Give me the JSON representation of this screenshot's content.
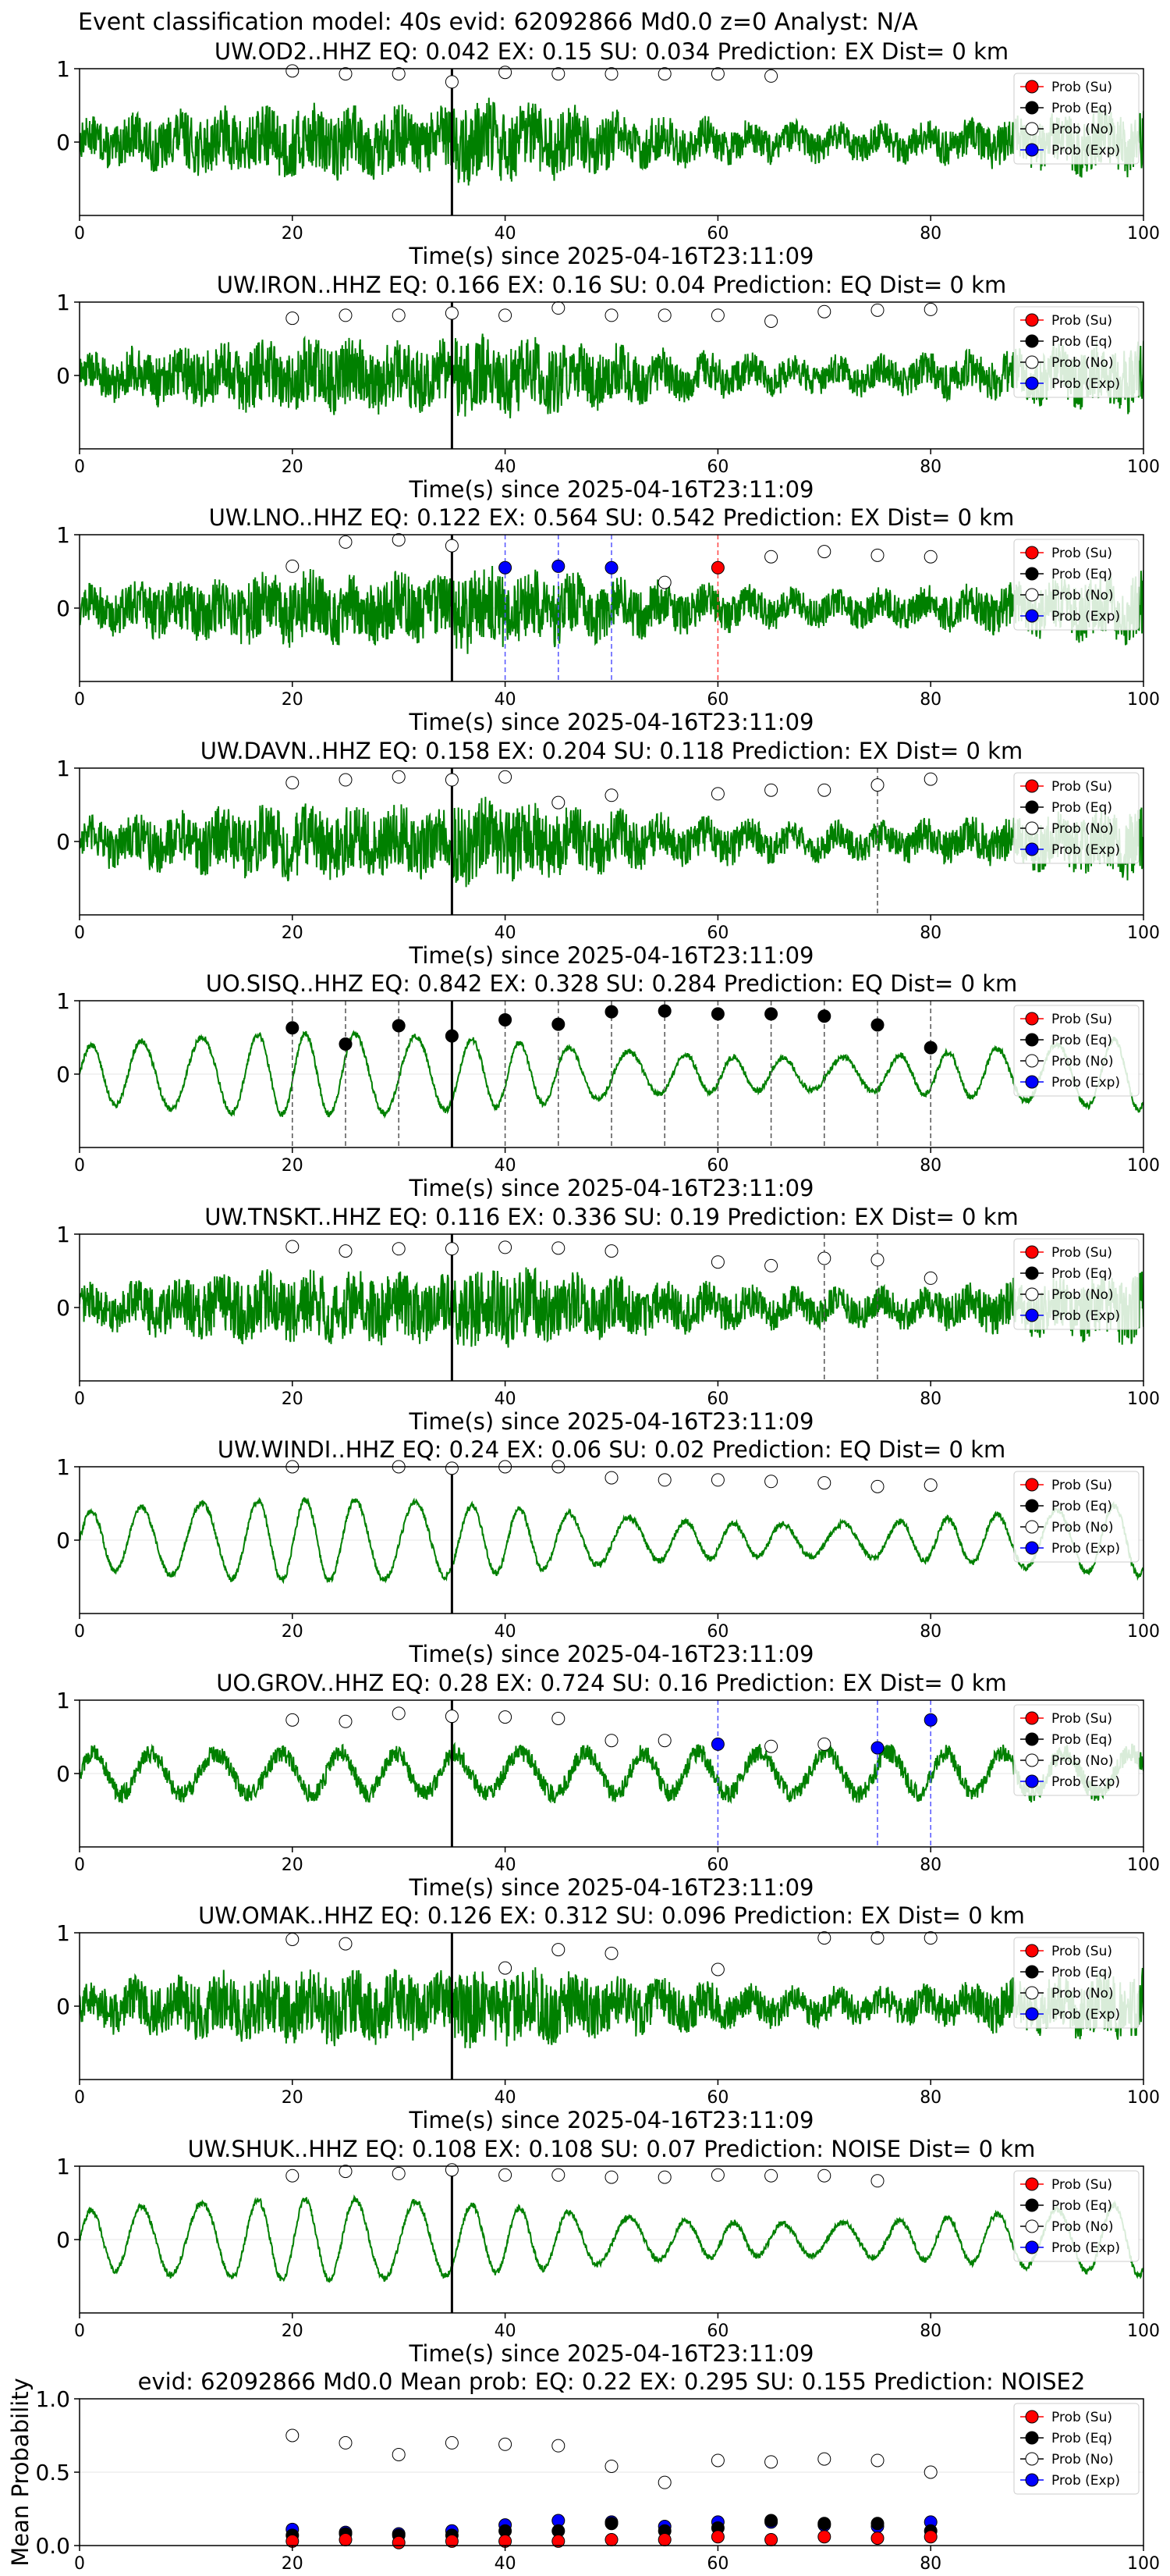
{
  "figure_title": "Event classification model: 40s evid: 62092866 Md0.0 z=0 Analyst: N/A",
  "legend_labels": [
    "Prob (Su)",
    "Prob (Eq)",
    "Prob (No)",
    "Prob (Exp)"
  ],
  "colors": {
    "trace": "#008000",
    "su": "#ff0000",
    "eq": "#000000",
    "no": "#ffffff",
    "exp": "#0000ff",
    "event_line": "#000000"
  },
  "chart_data": [
    {
      "type": "line",
      "title": "UW.OD2..HHZ   EQ: 0.042  EX: 0.15  SU: 0.034   Prediction: EX    Dist= 0 km",
      "xlabel": "Time(s) since 2025-04-16T23:11:09",
      "ylabel": "",
      "xlim": [
        0,
        100
      ],
      "ylim": [
        -1,
        1
      ],
      "xticks": [
        0,
        20,
        40,
        60,
        80,
        100
      ],
      "yticks": [
        0,
        1
      ],
      "event_time": 35,
      "trace_style": "noisy",
      "legend_position": "top-right",
      "grid": true,
      "points": {
        "su": [],
        "eq": [],
        "exp": [],
        "no": [
          [
            20,
            0.97
          ],
          [
            25,
            0.93
          ],
          [
            30,
            0.93
          ],
          [
            35,
            0.82
          ],
          [
            40,
            0.95
          ],
          [
            45,
            0.93
          ],
          [
            50,
            0.93
          ],
          [
            55,
            0.93
          ],
          [
            60,
            0.93
          ],
          [
            65,
            0.9
          ]
        ]
      },
      "vlines": []
    },
    {
      "type": "line",
      "title": "UW.IRON..HHZ   EQ: 0.166  EX: 0.16  SU: 0.04   Prediction: EQ    Dist= 0 km",
      "xlabel": "Time(s) since 2025-04-16T23:11:09",
      "ylabel": "",
      "xlim": [
        0,
        100
      ],
      "ylim": [
        -1,
        1
      ],
      "xticks": [
        0,
        20,
        40,
        60,
        80,
        100
      ],
      "yticks": [
        0,
        1
      ],
      "event_time": 35,
      "trace_style": "noisy",
      "legend_position": "top-right",
      "grid": true,
      "points": {
        "su": [],
        "eq": [],
        "exp": [],
        "no": [
          [
            20,
            0.78
          ],
          [
            25,
            0.82
          ],
          [
            30,
            0.82
          ],
          [
            35,
            0.85
          ],
          [
            40,
            0.82
          ],
          [
            45,
            0.92
          ],
          [
            50,
            0.82
          ],
          [
            55,
            0.82
          ],
          [
            60,
            0.82
          ],
          [
            65,
            0.74
          ],
          [
            70,
            0.87
          ],
          [
            75,
            0.89
          ],
          [
            80,
            0.9
          ]
        ]
      },
      "vlines": []
    },
    {
      "type": "line",
      "title": "UW.LNO..HHZ   EQ: 0.122  EX: 0.564  SU: 0.542   Prediction: EX    Dist= 0 km",
      "xlabel": "Time(s) since 2025-04-16T23:11:09",
      "ylabel": "",
      "xlim": [
        0,
        100
      ],
      "ylim": [
        -1,
        1
      ],
      "xticks": [
        0,
        20,
        40,
        60,
        80,
        100
      ],
      "yticks": [
        0,
        1
      ],
      "event_time": 35,
      "trace_style": "noisy",
      "legend_position": "top-right",
      "grid": true,
      "points": {
        "su": [
          [
            60,
            0.55
          ]
        ],
        "eq": [],
        "exp": [
          [
            40,
            0.55
          ],
          [
            45,
            0.57
          ],
          [
            50,
            0.55
          ]
        ],
        "no": [
          [
            20,
            0.57
          ],
          [
            25,
            0.9
          ],
          [
            30,
            0.93
          ],
          [
            35,
            0.85
          ],
          [
            55,
            0.35
          ],
          [
            65,
            0.7
          ],
          [
            70,
            0.77
          ],
          [
            75,
            0.72
          ],
          [
            80,
            0.7
          ]
        ]
      },
      "vlines": [
        {
          "x": 40,
          "kind": "exp"
        },
        {
          "x": 45,
          "kind": "exp"
        },
        {
          "x": 50,
          "kind": "exp"
        },
        {
          "x": 60,
          "kind": "su"
        }
      ]
    },
    {
      "type": "line",
      "title": "UW.DAVN..HHZ   EQ: 0.158  EX: 0.204  SU: 0.118   Prediction: EX    Dist= 0 km",
      "xlabel": "Time(s) since 2025-04-16T23:11:09",
      "ylabel": "",
      "xlim": [
        0,
        100
      ],
      "ylim": [
        -1,
        1
      ],
      "xticks": [
        0,
        20,
        40,
        60,
        80,
        100
      ],
      "yticks": [
        0,
        1
      ],
      "event_time": 35,
      "trace_style": "noisy",
      "legend_position": "top-right",
      "grid": true,
      "points": {
        "su": [],
        "eq": [],
        "exp": [],
        "no": [
          [
            20,
            0.8
          ],
          [
            25,
            0.84
          ],
          [
            30,
            0.88
          ],
          [
            35,
            0.84
          ],
          [
            40,
            0.88
          ],
          [
            45,
            0.53
          ],
          [
            50,
            0.63
          ],
          [
            60,
            0.65
          ],
          [
            65,
            0.7
          ],
          [
            70,
            0.7
          ],
          [
            75,
            0.77
          ],
          [
            80,
            0.85
          ]
        ]
      },
      "vlines": [
        {
          "x": 75,
          "kind": "eq"
        }
      ]
    },
    {
      "type": "line",
      "title": "UO.SISQ..HHZ   EQ: 0.842  EX: 0.328  SU: 0.284   Prediction: EQ    Dist= 0 km",
      "xlabel": "Time(s) since 2025-04-16T23:11:09",
      "ylabel": "",
      "xlim": [
        0,
        100
      ],
      "ylim": [
        -1,
        1
      ],
      "xticks": [
        0,
        20,
        40,
        60,
        80,
        100
      ],
      "yticks": [
        0,
        1
      ],
      "event_time": 35,
      "trace_style": "smooth",
      "legend_position": "top-right",
      "grid": true,
      "points": {
        "su": [],
        "exp": [],
        "no": [],
        "eq": [
          [
            20,
            0.63
          ],
          [
            25,
            0.41
          ],
          [
            30,
            0.66
          ],
          [
            35,
            0.52
          ],
          [
            40,
            0.74
          ],
          [
            45,
            0.68
          ],
          [
            50,
            0.85
          ],
          [
            55,
            0.86
          ],
          [
            60,
            0.82
          ],
          [
            65,
            0.82
          ],
          [
            70,
            0.79
          ],
          [
            75,
            0.67
          ],
          [
            80,
            0.36
          ]
        ]
      },
      "vlines": [
        {
          "x": 20,
          "kind": "eq"
        },
        {
          "x": 25,
          "kind": "eq"
        },
        {
          "x": 30,
          "kind": "eq"
        },
        {
          "x": 40,
          "kind": "eq"
        },
        {
          "x": 45,
          "kind": "eq"
        },
        {
          "x": 50,
          "kind": "eq"
        },
        {
          "x": 55,
          "kind": "eq"
        },
        {
          "x": 60,
          "kind": "eq"
        },
        {
          "x": 65,
          "kind": "eq"
        },
        {
          "x": 70,
          "kind": "eq"
        },
        {
          "x": 75,
          "kind": "eq"
        },
        {
          "x": 80,
          "kind": "eq"
        }
      ]
    },
    {
      "type": "line",
      "title": "UW.TNSKT..HHZ   EQ: 0.116  EX: 0.336  SU: 0.19   Prediction: EX    Dist= 0 km",
      "xlabel": "Time(s) since 2025-04-16T23:11:09",
      "ylabel": "",
      "xlim": [
        0,
        100
      ],
      "ylim": [
        -1,
        1
      ],
      "xticks": [
        0,
        20,
        40,
        60,
        80,
        100
      ],
      "yticks": [
        0,
        1
      ],
      "event_time": 35,
      "trace_style": "noisy",
      "legend_position": "top-right",
      "grid": true,
      "points": {
        "su": [],
        "eq": [],
        "exp": [],
        "no": [
          [
            20,
            0.83
          ],
          [
            25,
            0.77
          ],
          [
            30,
            0.8
          ],
          [
            35,
            0.8
          ],
          [
            40,
            0.82
          ],
          [
            45,
            0.81
          ],
          [
            50,
            0.77
          ],
          [
            60,
            0.62
          ],
          [
            65,
            0.57
          ],
          [
            70,
            0.67
          ],
          [
            75,
            0.65
          ],
          [
            80,
            0.4
          ]
        ]
      },
      "vlines": [
        {
          "x": 70,
          "kind": "eq"
        },
        {
          "x": 75,
          "kind": "eq"
        }
      ]
    },
    {
      "type": "line",
      "title": "UW.WINDI..HHZ   EQ: 0.24  EX: 0.06  SU: 0.02   Prediction: EQ    Dist= 0 km",
      "xlabel": "Time(s) since 2025-04-16T23:11:09",
      "ylabel": "",
      "xlim": [
        0,
        100
      ],
      "ylim": [
        -1,
        1
      ],
      "xticks": [
        0,
        20,
        40,
        60,
        80,
        100
      ],
      "yticks": [
        0,
        1
      ],
      "event_time": 35,
      "trace_style": "smooth",
      "legend_position": "top-right",
      "grid": true,
      "points": {
        "su": [],
        "eq": [],
        "exp": [],
        "no": [
          [
            20,
            1.0
          ],
          [
            30,
            1.0
          ],
          [
            35,
            0.98
          ],
          [
            40,
            1.0
          ],
          [
            45,
            1.0
          ],
          [
            50,
            0.85
          ],
          [
            55,
            0.82
          ],
          [
            60,
            0.82
          ],
          [
            65,
            0.8
          ],
          [
            70,
            0.78
          ],
          [
            75,
            0.73
          ],
          [
            80,
            0.75
          ]
        ]
      },
      "vlines": []
    },
    {
      "type": "line",
      "title": "UO.GROV..HHZ   EQ: 0.28  EX: 0.724  SU: 0.16   Prediction: EX    Dist= 0 km",
      "xlabel": "Time(s) since 2025-04-16T23:11:09",
      "ylabel": "",
      "xlim": [
        0,
        100
      ],
      "ylim": [
        -1,
        1
      ],
      "xticks": [
        0,
        20,
        40,
        60,
        80,
        100
      ],
      "yticks": [
        0,
        1
      ],
      "event_time": 35,
      "trace_style": "smooth-noisy",
      "legend_position": "top-right",
      "grid": true,
      "points": {
        "su": [],
        "eq": [],
        "exp": [
          [
            60,
            0.4
          ],
          [
            75,
            0.35
          ],
          [
            80,
            0.73
          ]
        ],
        "no": [
          [
            20,
            0.73
          ],
          [
            25,
            0.71
          ],
          [
            30,
            0.82
          ],
          [
            35,
            0.78
          ],
          [
            40,
            0.77
          ],
          [
            45,
            0.75
          ],
          [
            50,
            0.45
          ],
          [
            55,
            0.45
          ],
          [
            65,
            0.37
          ],
          [
            70,
            0.4
          ]
        ]
      },
      "vlines": [
        {
          "x": 60,
          "kind": "exp"
        },
        {
          "x": 75,
          "kind": "exp"
        },
        {
          "x": 80,
          "kind": "exp"
        }
      ]
    },
    {
      "type": "line",
      "title": "UW.OMAK..HHZ   EQ: 0.126  EX: 0.312  SU: 0.096   Prediction: EX    Dist= 0 km",
      "xlabel": "Time(s) since 2025-04-16T23:11:09",
      "ylabel": "",
      "xlim": [
        0,
        100
      ],
      "ylim": [
        -1,
        1
      ],
      "xticks": [
        0,
        20,
        40,
        60,
        80,
        100
      ],
      "yticks": [
        0,
        1
      ],
      "event_time": 35,
      "trace_style": "noisy",
      "legend_position": "top-right",
      "grid": true,
      "points": {
        "su": [],
        "eq": [],
        "exp": [],
        "no": [
          [
            20,
            0.91
          ],
          [
            25,
            0.85
          ],
          [
            40,
            0.52
          ],
          [
            45,
            0.77
          ],
          [
            50,
            0.72
          ],
          [
            60,
            0.5
          ],
          [
            70,
            0.93
          ],
          [
            75,
            0.93
          ],
          [
            80,
            0.93
          ]
        ]
      },
      "vlines": []
    },
    {
      "type": "line",
      "title": "UW.SHUK..HHZ   EQ: 0.108  EX: 0.108  SU: 0.07   Prediction: NOISE    Dist= 0 km",
      "xlabel": "Time(s) since 2025-04-16T23:11:09",
      "ylabel": "",
      "xlim": [
        0,
        100
      ],
      "ylim": [
        -1,
        1
      ],
      "xticks": [
        0,
        20,
        40,
        60,
        80,
        100
      ],
      "yticks": [
        0,
        1
      ],
      "event_time": 35,
      "trace_style": "smooth",
      "legend_position": "top-right",
      "grid": true,
      "points": {
        "su": [],
        "eq": [],
        "exp": [],
        "no": [
          [
            20,
            0.87
          ],
          [
            25,
            0.93
          ],
          [
            30,
            0.9
          ],
          [
            35,
            0.95
          ],
          [
            40,
            0.88
          ],
          [
            45,
            0.88
          ],
          [
            50,
            0.85
          ],
          [
            55,
            0.85
          ],
          [
            60,
            0.88
          ],
          [
            65,
            0.87
          ],
          [
            70,
            0.87
          ],
          [
            75,
            0.8
          ]
        ]
      },
      "vlines": []
    },
    {
      "type": "scatter",
      "title": "evid: 62092866  Md0.0   Mean prob:   EQ: 0.22  EX: 0.295  SU: 0.155   Prediction: NOISE2",
      "xlabel": "",
      "ylabel": "Mean Probability",
      "xlim": [
        0,
        100
      ],
      "ylim": [
        0,
        1
      ],
      "xticks": [
        0,
        20,
        40,
        60,
        80,
        100
      ],
      "yticks": [
        0.0,
        0.5,
        1.0
      ],
      "legend_position": "top-right",
      "grid": true,
      "points": {
        "no": [
          [
            20,
            0.75
          ],
          [
            25,
            0.7
          ],
          [
            30,
            0.62
          ],
          [
            35,
            0.7
          ],
          [
            40,
            0.69
          ],
          [
            45,
            0.68
          ],
          [
            50,
            0.54
          ],
          [
            55,
            0.43
          ],
          [
            60,
            0.58
          ],
          [
            65,
            0.57
          ],
          [
            70,
            0.59
          ],
          [
            75,
            0.58
          ],
          [
            80,
            0.5
          ]
        ],
        "exp": [
          [
            20,
            0.11
          ],
          [
            25,
            0.09
          ],
          [
            30,
            0.08
          ],
          [
            35,
            0.1
          ],
          [
            40,
            0.14
          ],
          [
            45,
            0.17
          ],
          [
            50,
            0.16
          ],
          [
            55,
            0.13
          ],
          [
            60,
            0.16
          ],
          [
            65,
            0.16
          ],
          [
            70,
            0.14
          ],
          [
            75,
            0.13
          ],
          [
            80,
            0.16
          ]
        ],
        "eq": [
          [
            20,
            0.07
          ],
          [
            25,
            0.08
          ],
          [
            30,
            0.07
          ],
          [
            35,
            0.07
          ],
          [
            40,
            0.1
          ],
          [
            45,
            0.1
          ],
          [
            50,
            0.15
          ],
          [
            55,
            0.1
          ],
          [
            60,
            0.12
          ],
          [
            65,
            0.17
          ],
          [
            70,
            0.15
          ],
          [
            75,
            0.15
          ],
          [
            80,
            0.1
          ]
        ],
        "su": [
          [
            20,
            0.03
          ],
          [
            25,
            0.04
          ],
          [
            30,
            0.02
          ],
          [
            35,
            0.03
          ],
          [
            40,
            0.03
          ],
          [
            45,
            0.03
          ],
          [
            50,
            0.04
          ],
          [
            55,
            0.04
          ],
          [
            60,
            0.06
          ],
          [
            65,
            0.04
          ],
          [
            70,
            0.06
          ],
          [
            75,
            0.05
          ],
          [
            80,
            0.06
          ]
        ]
      },
      "vlines": []
    }
  ]
}
